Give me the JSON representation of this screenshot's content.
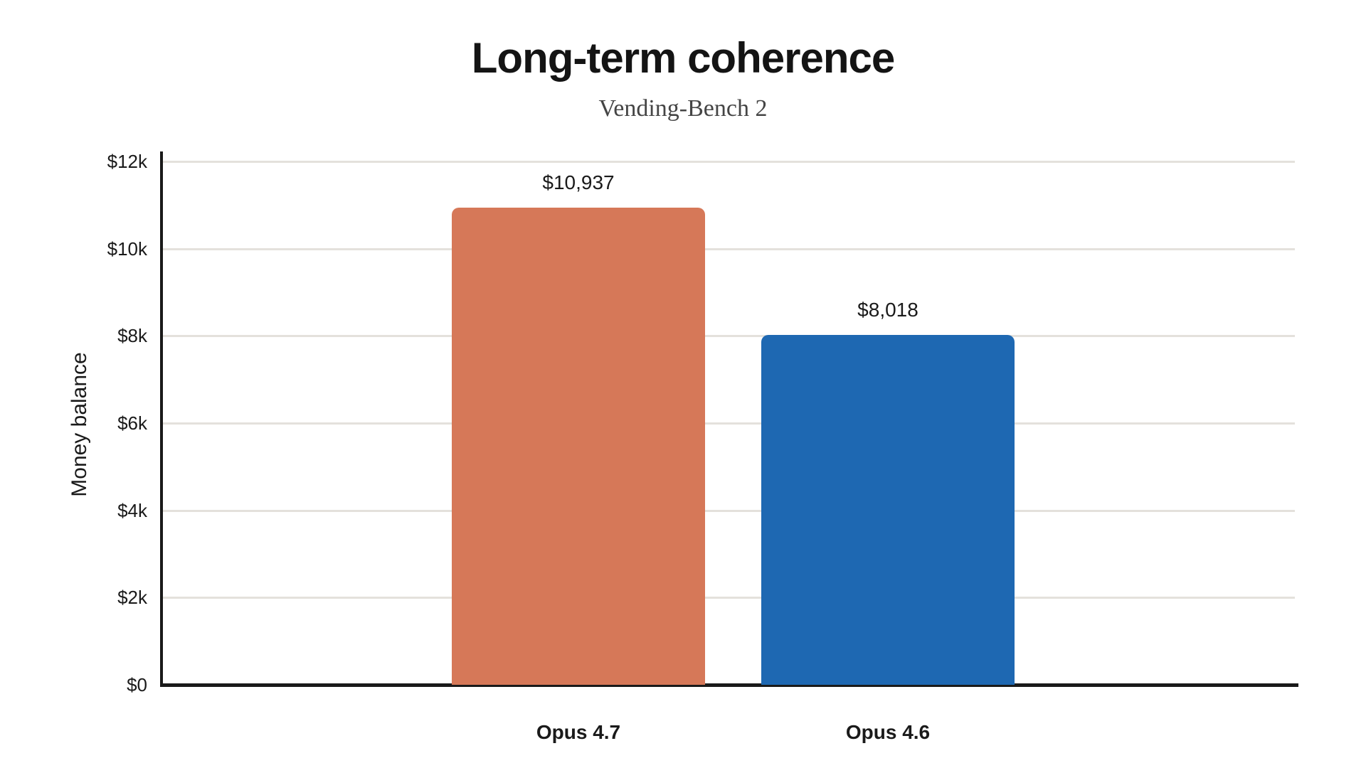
{
  "header": {
    "title": "Long-term coherence",
    "subtitle": "Vending-Bench 2"
  },
  "chart_data": {
    "type": "bar",
    "title": "Long-term coherence",
    "subtitle": "Vending-Bench 2",
    "xlabel": "",
    "ylabel": "Money balance",
    "categories": [
      "Opus 4.7",
      "Opus 4.6"
    ],
    "values": [
      10937,
      8018
    ],
    "value_labels": [
      "$10,937",
      "$8,018"
    ],
    "bar_colors": [
      "#D67858",
      "#1E68B2"
    ],
    "ylim": [
      0,
      12000
    ],
    "yticks": [
      {
        "value": 0,
        "label": "$0"
      },
      {
        "value": 2000,
        "label": "$2k"
      },
      {
        "value": 4000,
        "label": "$4k"
      },
      {
        "value": 6000,
        "label": "$6k"
      },
      {
        "value": 8000,
        "label": "$8k"
      },
      {
        "value": 10000,
        "label": "$10k"
      },
      {
        "value": 12000,
        "label": "$12k"
      }
    ],
    "grid": true,
    "legend_position": "none",
    "colors": {
      "background": "#FFFFFF",
      "axis": "#1A1A1A",
      "gridline": "#E4E1DC",
      "title_text": "#141414",
      "subtitle_text": "#454545",
      "label_text": "#1A1A1A"
    }
  }
}
